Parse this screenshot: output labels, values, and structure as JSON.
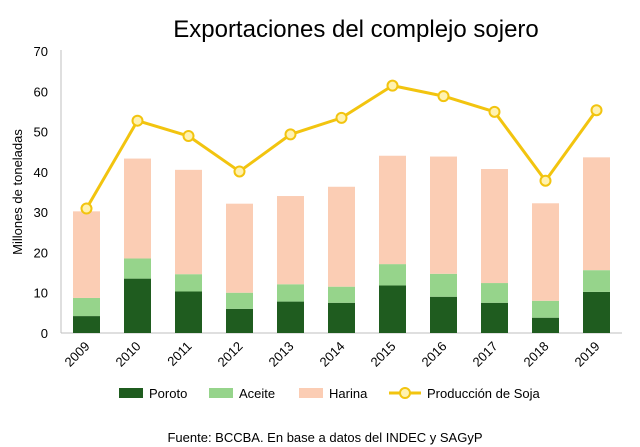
{
  "chart_data": {
    "type": "bar",
    "title": "Exportaciones del complejo sojero",
    "xlabel": "",
    "ylabel": "Millones de toneladas",
    "ylim": [
      0,
      70
    ],
    "yticks": [
      0,
      10,
      20,
      30,
      40,
      50,
      60,
      70
    ],
    "stacked": true,
    "categories": [
      "2009",
      "2010",
      "2011",
      "2012",
      "2013",
      "2014",
      "2015",
      "2016",
      "2017",
      "2018",
      "2019"
    ],
    "series": [
      {
        "name": "Poroto",
        "type": "bar",
        "color": "#1f5c1f",
        "values": [
          4.2,
          13.5,
          10.3,
          6.0,
          7.8,
          7.5,
          11.8,
          9.0,
          7.5,
          3.8,
          10.2
        ]
      },
      {
        "name": "Aceite",
        "type": "bar",
        "color": "#96d48b",
        "values": [
          4.5,
          5.0,
          4.3,
          4.0,
          4.3,
          4.0,
          5.3,
          5.7,
          4.9,
          4.2,
          5.4
        ]
      },
      {
        "name": "Harina",
        "type": "bar",
        "color": "#fbcdb4",
        "values": [
          21.5,
          24.8,
          25.9,
          22.1,
          21.9,
          24.8,
          26.9,
          29.1,
          28.3,
          24.2,
          28.0
        ]
      },
      {
        "name": "Producción de Soja",
        "type": "line",
        "color": "#f2c40f",
        "marker_fill": "#fff2b0",
        "values": [
          30.9,
          52.7,
          48.9,
          40.1,
          49.3,
          53.4,
          61.4,
          58.8,
          54.9,
          37.8,
          55.3
        ]
      }
    ],
    "legend_position": "bottom",
    "source": "Fuente: BCCBA. En base a datos del INDEC y SAGyP"
  }
}
